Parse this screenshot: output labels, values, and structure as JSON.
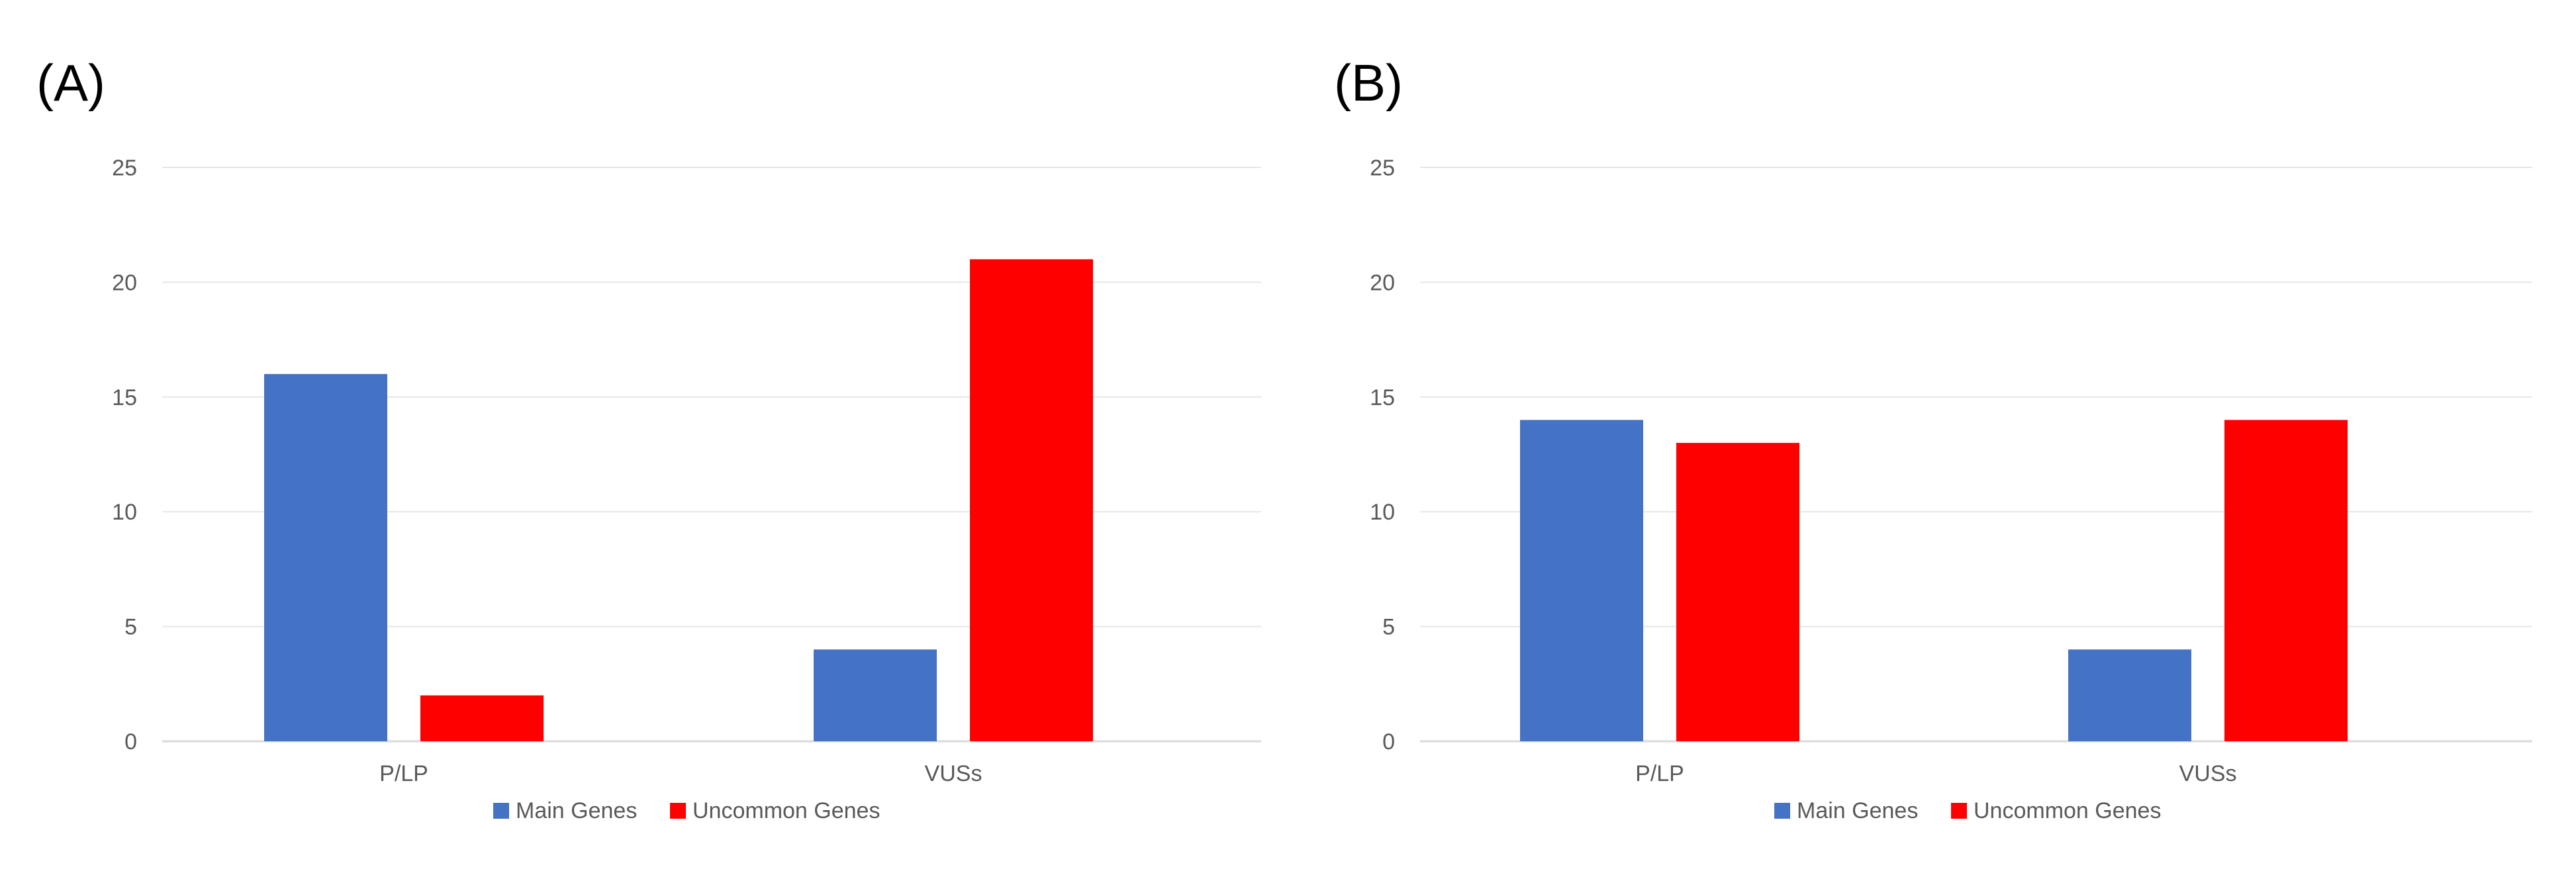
{
  "panels": [
    {
      "label": "(A)"
    },
    {
      "label": "(B)"
    }
  ],
  "chart_data": [
    {
      "type": "bar",
      "categories": [
        "P/LP",
        "VUSs"
      ],
      "series": [
        {
          "name": "Main Genes",
          "color": "#4472C4",
          "values": [
            16,
            4
          ]
        },
        {
          "name": "Uncommon Genes",
          "color": "#FF0000",
          "values": [
            2,
            21
          ]
        }
      ],
      "ylim": [
        0,
        25
      ],
      "yticks": [
        0,
        5,
        10,
        15,
        20,
        25
      ],
      "grid": true,
      "legend": "bottom",
      "title": "",
      "xlabel": "",
      "ylabel": ""
    },
    {
      "type": "bar",
      "categories": [
        "P/LP",
        "VUSs"
      ],
      "series": [
        {
          "name": "Main Genes",
          "color": "#4472C4",
          "values": [
            14,
            4
          ]
        },
        {
          "name": "Uncommon Genes",
          "color": "#FF0000",
          "values": [
            13,
            14
          ]
        }
      ],
      "ylim": [
        0,
        25
      ],
      "yticks": [
        0,
        5,
        10,
        15,
        20,
        25
      ],
      "grid": true,
      "legend": "bottom",
      "title": "",
      "xlabel": "",
      "ylabel": ""
    }
  ]
}
